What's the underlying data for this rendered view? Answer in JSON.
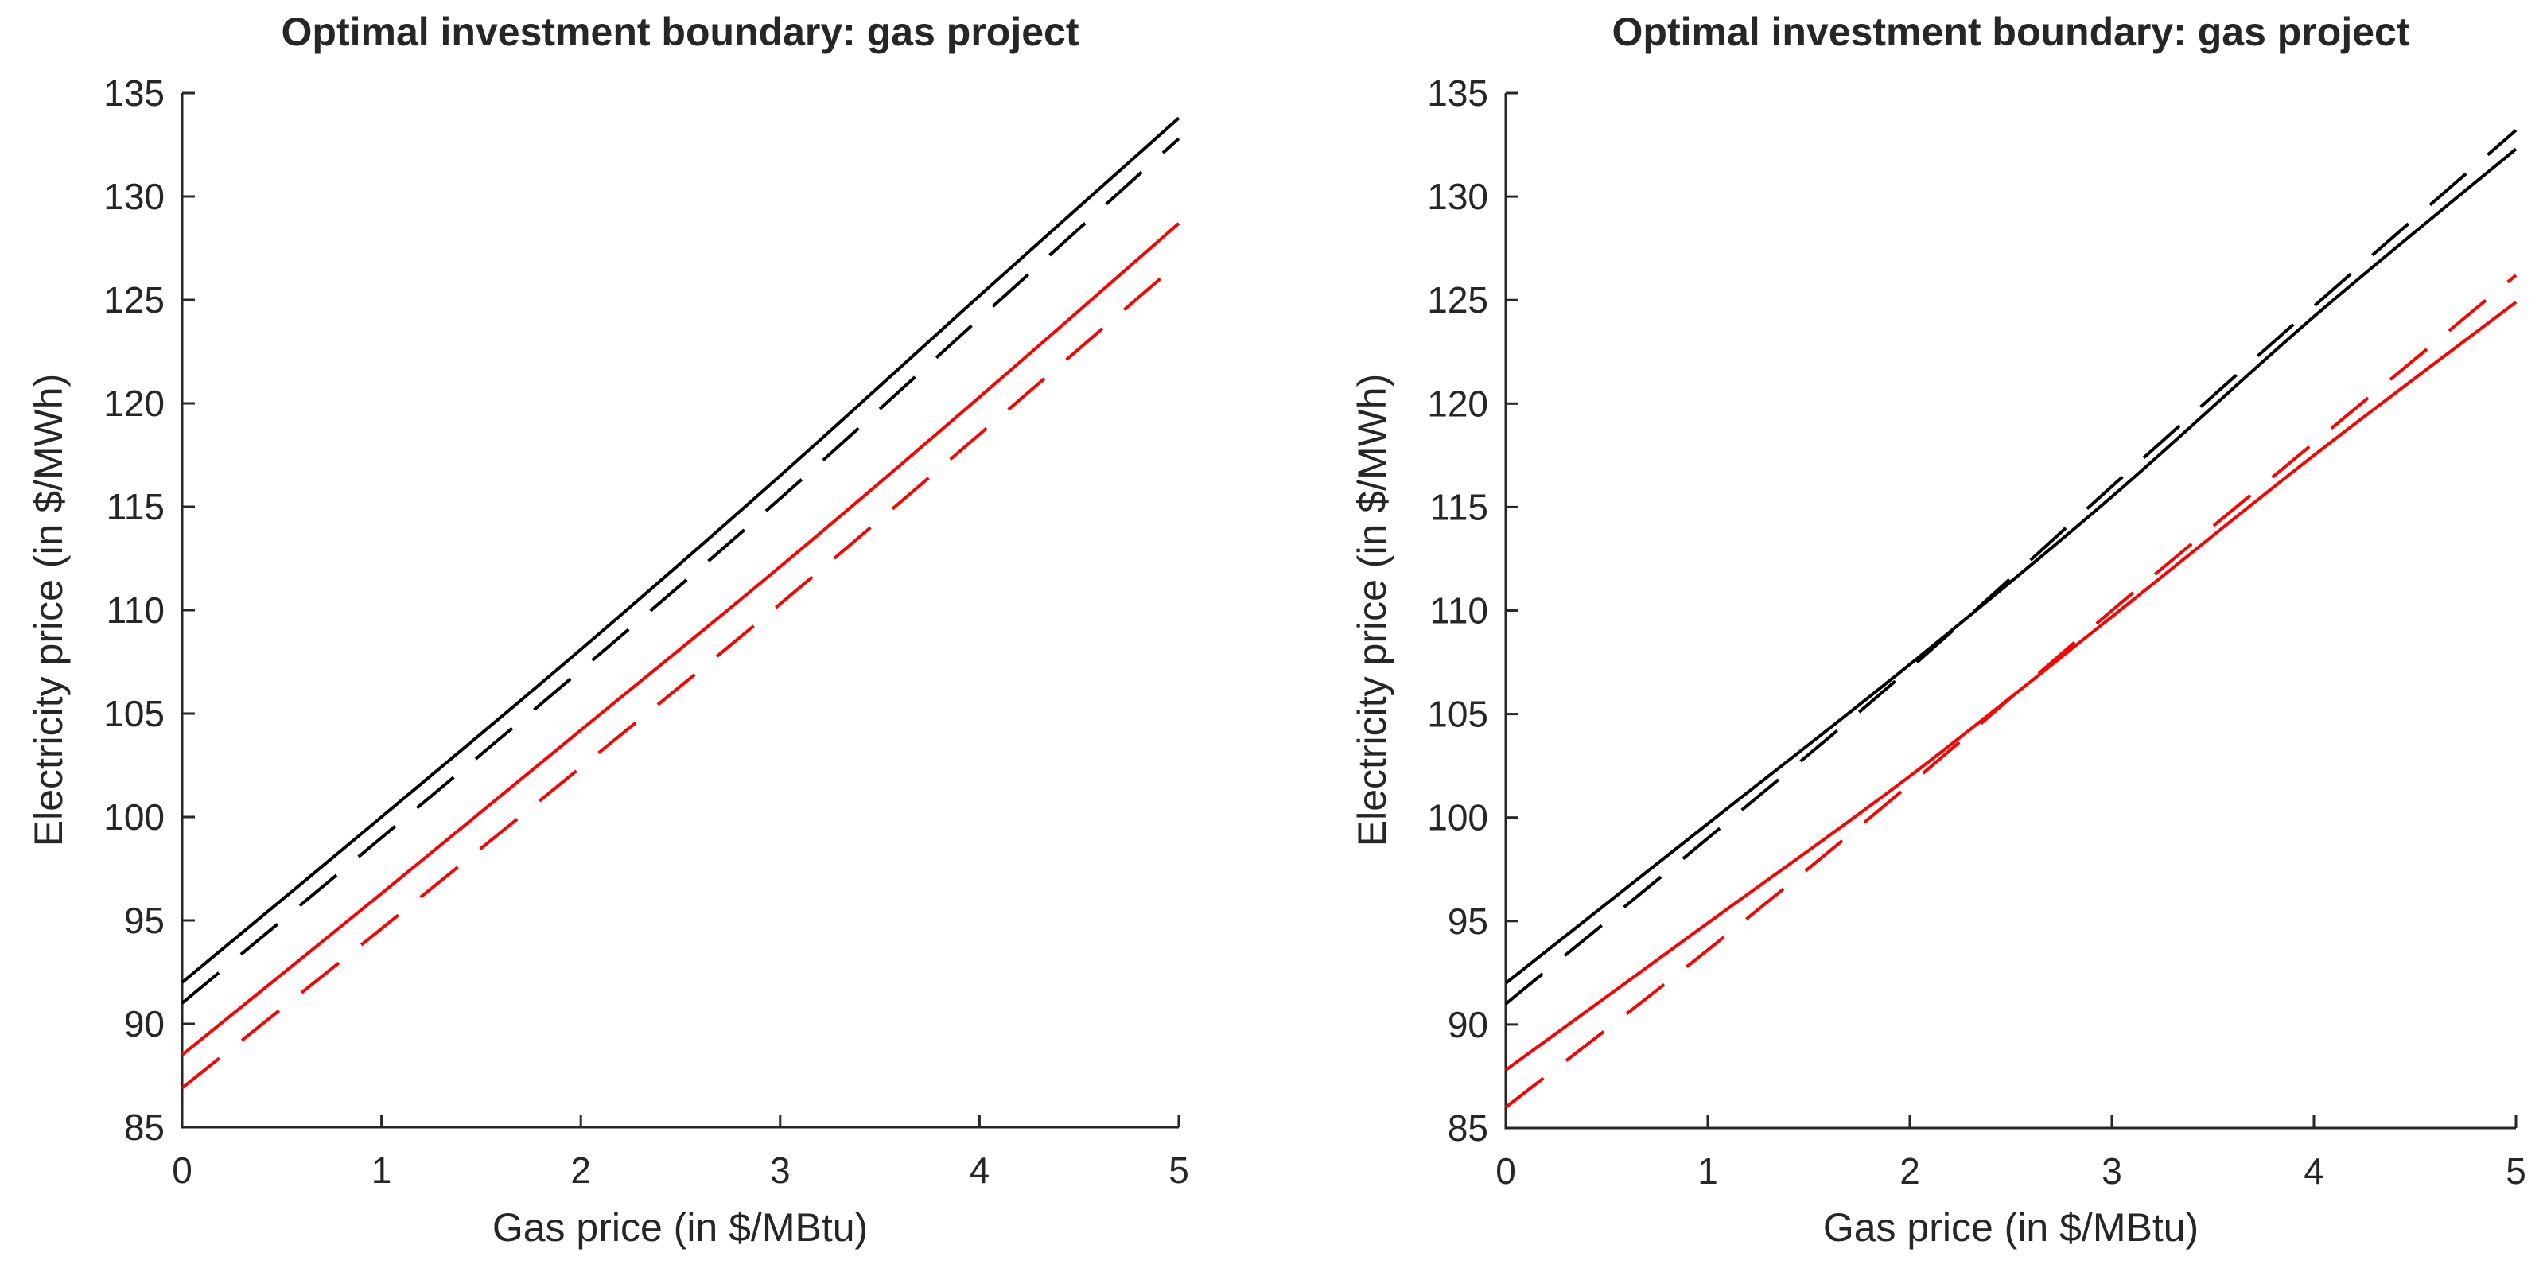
{
  "figure": {
    "background": "#ffffff",
    "axis_color": "#262626",
    "line_colors": {
      "black": "#000000",
      "red": "#ff0000"
    }
  },
  "chart_data": [
    {
      "type": "line",
      "title": "Optimal investment boundary: gas project",
      "xlabel": "Gas price (in $/MBtu)",
      "ylabel": "Electricity price (in $/MWh)",
      "xlim": [
        0,
        5
      ],
      "ylim": [
        85,
        135
      ],
      "xticks": [
        0,
        1,
        2,
        3,
        4,
        5
      ],
      "yticks": [
        85,
        90,
        95,
        100,
        105,
        110,
        115,
        120,
        125,
        130,
        135
      ],
      "grid": false,
      "legend": "none",
      "x": [
        0,
        1,
        2,
        3,
        4,
        5
      ],
      "series": [
        {
          "name": "black-solid",
          "color": "#000000",
          "style": "solid",
          "values": [
            92.0,
            100.0,
            108.1,
            116.5,
            125.2,
            133.8
          ]
        },
        {
          "name": "black-dashed",
          "color": "#000000",
          "style": "dashed",
          "values": [
            91.0,
            99.0,
            107.1,
            115.4,
            124.1,
            132.8
          ]
        },
        {
          "name": "red-solid",
          "color": "#ff0000",
          "style": "solid",
          "values": [
            88.5,
            96.3,
            104.2,
            112.1,
            120.3,
            128.7
          ]
        },
        {
          "name": "red-dashed",
          "color": "#ff0000",
          "style": "dashed",
          "values": [
            86.9,
            94.6,
            102.4,
            110.3,
            118.5,
            126.8
          ]
        }
      ]
    },
    {
      "type": "line",
      "title": "Optimal investment boundary: gas project",
      "xlabel": "Gas price (in $/MBtu)",
      "ylabel": "Electricity price (in $/MWh)",
      "xlim": [
        0,
        5
      ],
      "ylim": [
        85,
        135
      ],
      "xticks": [
        0,
        1,
        2,
        3,
        4,
        5
      ],
      "yticks": [
        85,
        90,
        95,
        100,
        105,
        110,
        115,
        120,
        125,
        130,
        135
      ],
      "grid": false,
      "legend": "none",
      "x": [
        0,
        1,
        2,
        3,
        4,
        5
      ],
      "series": [
        {
          "name": "black-solid",
          "color": "#000000",
          "style": "solid",
          "values": [
            92.0,
            99.7,
            107.4,
            115.5,
            124.2,
            132.3
          ]
        },
        {
          "name": "black-dashed",
          "color": "#000000",
          "style": "dashed",
          "values": [
            91.0,
            99.0,
            107.2,
            116.0,
            124.7,
            133.2
          ]
        },
        {
          "name": "red-solid",
          "color": "#ff0000",
          "style": "solid",
          "values": [
            87.8,
            94.9,
            102.0,
            109.7,
            117.5,
            124.9
          ]
        },
        {
          "name": "red-dashed",
          "color": "#ff0000",
          "style": "dashed",
          "values": [
            86.0,
            93.6,
            101.6,
            110.0,
            118.1,
            126.2
          ]
        }
      ]
    }
  ]
}
